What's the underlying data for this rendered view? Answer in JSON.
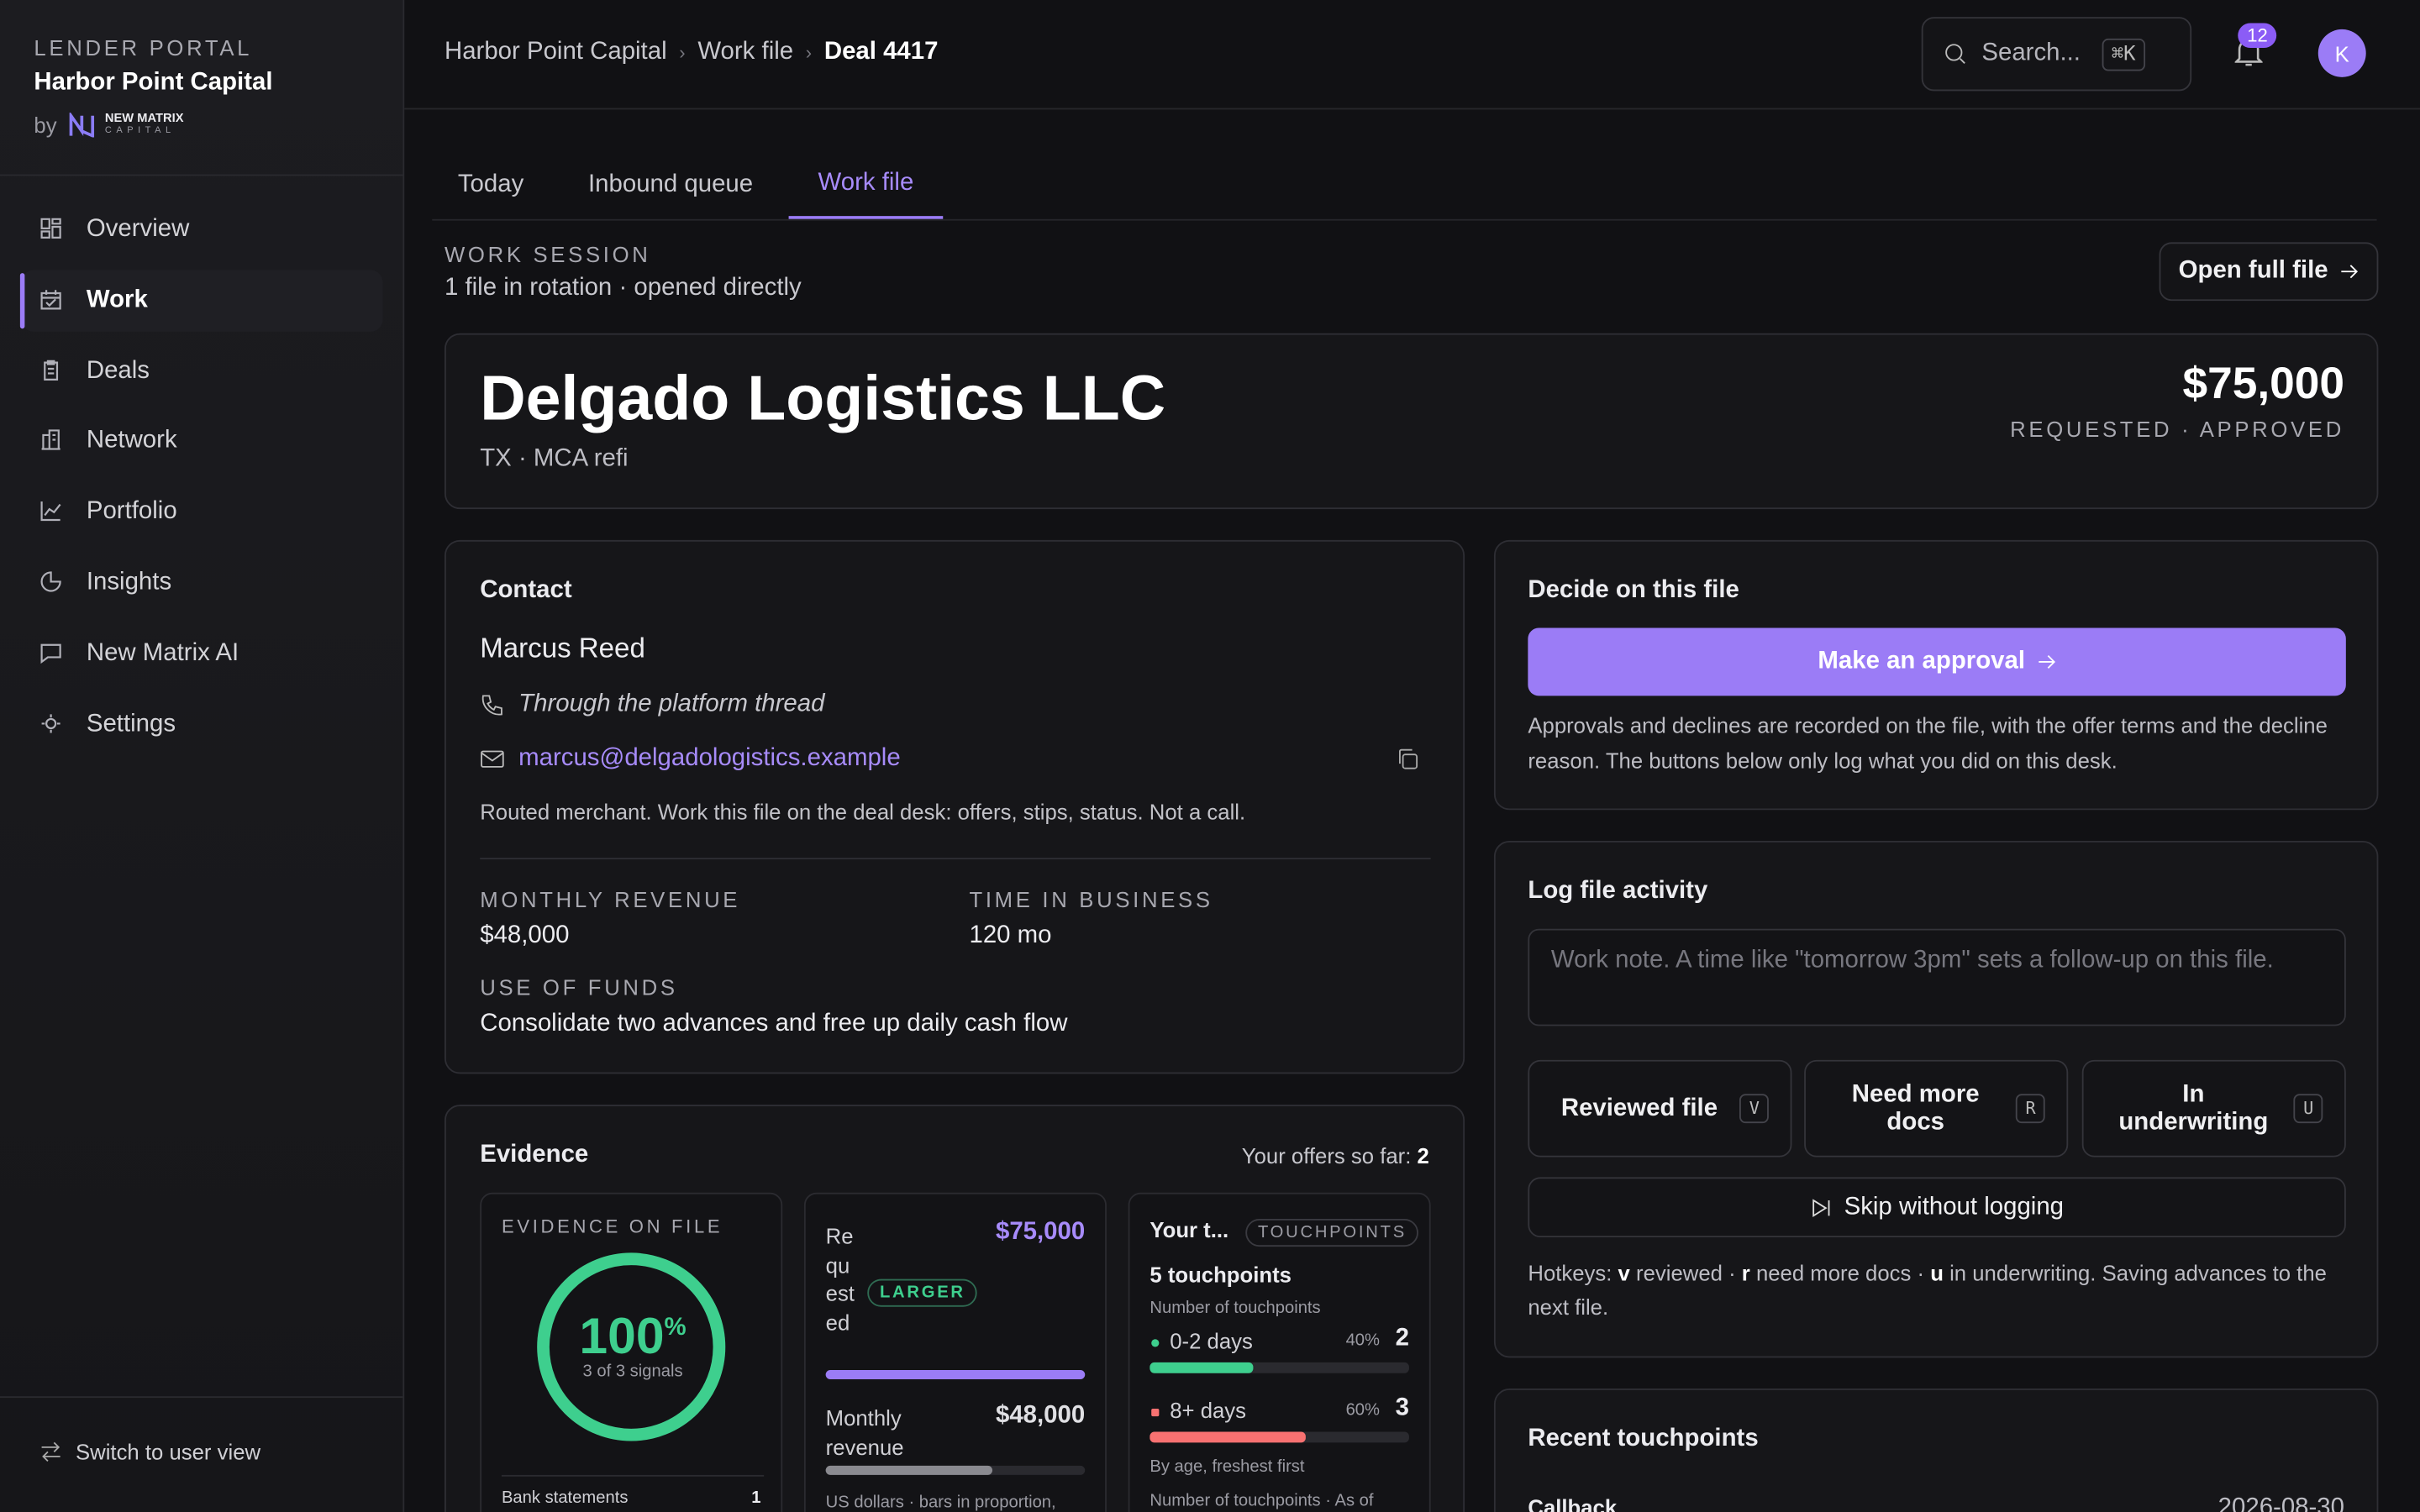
{
  "sidebar": {
    "portal_label": "LENDER PORTAL",
    "org": "Harbor Point Capital",
    "by": "by",
    "brand_top": "NEW MATRIX",
    "brand_bottom": "CAPITAL",
    "nav": [
      "Overview",
      "Work",
      "Deals",
      "Network",
      "Portfolio",
      "Insights",
      "New Matrix AI",
      "Settings"
    ],
    "active_nav": 1,
    "switch": "Switch to user view"
  },
  "topbar": {
    "breadcrumbs": [
      "Harbor Point Capital",
      "Work file",
      "Deal 4417"
    ],
    "search": "Search...",
    "shortcut": "⌘K",
    "notifications": 12,
    "avatar": "K"
  },
  "tabs": [
    "Today",
    "Inbound queue",
    "Work file"
  ],
  "active_tab": 2,
  "session": {
    "label": "WORK SESSION",
    "detail": "1 file in rotation · opened directly",
    "open_button": "Open full file"
  },
  "header": {
    "name": "Delgado Logistics LLC",
    "sub": "TX · MCA refi",
    "amount": "$75,000",
    "amount_label": "REQUESTED · APPROVED"
  },
  "contact": {
    "title": "Contact",
    "name": "Marcus Reed",
    "channel": "Through the platform thread",
    "email": "marcus@delgadologistics.example",
    "note": "Routed merchant. Work this file on the deal desk: offers, stips, status. Not a call.",
    "fields": [
      {
        "label": "MONTHLY REVENUE",
        "value": "$48,000"
      },
      {
        "label": "TIME IN BUSINESS",
        "value": "120 mo"
      },
      {
        "label": "USE OF FUNDS",
        "value": "Consolidate two advances and free up daily cash flow"
      }
    ]
  },
  "evidence": {
    "title": "Evidence",
    "offers_label": "Your offers so far:",
    "offers": 2,
    "on_file": {
      "label": "EVIDENCE ON FILE",
      "percent": 100,
      "percent_sign": "%",
      "signals": "3 of 3 signals",
      "rows": [
        {
          "label": "Bank statements",
          "value": 1
        }
      ]
    },
    "comparison": {
      "requested_label": "Requested",
      "requested": {
        "value": 75000,
        "label": "$75,000"
      },
      "badge": "LARGER",
      "revenue_label": "Monthly revenue",
      "revenue": {
        "value": 48000,
        "label": "$48,000"
      },
      "note": "US dollars · bars in proportion,"
    },
    "touchpoints": {
      "title": "Your t...",
      "badge": "TOUCHPOINTS",
      "count": "5 touchpoints",
      "sub": "Number of touchpoints",
      "rows": [
        {
          "label": "0-2 days",
          "pct": {
            "value": 40,
            "label": "40%"
          },
          "value": 2,
          "color": "#3ecf8e"
        },
        {
          "label": "8+ days",
          "pct": {
            "value": 60,
            "label": "60%"
          },
          "value": 3,
          "color": "#f87171"
        }
      ],
      "note1": "By age, freshest first",
      "note2": "Number of touchpoints · As of"
    }
  },
  "decide": {
    "title": "Decide on this file",
    "button": "Make an approval",
    "note": "Approvals and declines are recorded on the file, with the offer terms and the decline reason. The buttons below only log what you did on this desk."
  },
  "log": {
    "title": "Log file activity",
    "placeholder": "Work note. A time like \"tomorrow 3pm\" sets a follow-up on this file.",
    "buttons": [
      {
        "label": "Reviewed file",
        "key": "V"
      },
      {
        "label": "Need more docs",
        "key": "R"
      },
      {
        "label": "In underwriting",
        "key": "U"
      }
    ],
    "skip": "Skip without logging",
    "hotkeys": [
      "Hotkeys: ",
      "v",
      " reviewed · ",
      "r",
      " need more docs · ",
      "u",
      " in underwriting. Saving advances to the next file."
    ]
  },
  "recent": {
    "title": "Recent touchpoints",
    "items": [
      {
        "label": "Callback",
        "date": "2026-08-30"
      }
    ]
  }
}
